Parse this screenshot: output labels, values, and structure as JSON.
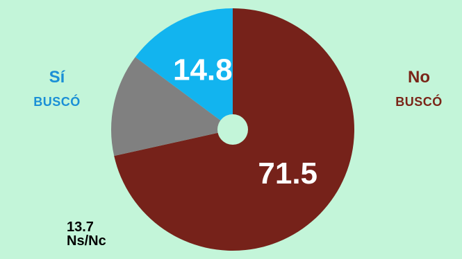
{
  "chart_data": {
    "type": "pie",
    "donut_hole": true,
    "start_angle_deg": 90,
    "direction": "clockwise",
    "slices": [
      {
        "name": "No BUSCÓ",
        "value": 71.5,
        "label": "71.5",
        "color": "#76221a"
      },
      {
        "name": "Ns/Nc",
        "value": 13.7,
        "label": "",
        "color": "#808080"
      },
      {
        "name": "Sí BUSCÓ",
        "value": 14.8,
        "label": "14.8",
        "color": "#12b4ef"
      }
    ],
    "labels": {
      "si_top": "Sí",
      "si_bottom": "BUSCÓ",
      "no_top": "No",
      "no_bottom": "BUSCÓ",
      "ns_value": "13.7",
      "ns_text": "Ns/Nc"
    },
    "colors": {
      "background": "#c3f5d9",
      "si_text": "#1a8fd6",
      "no_text": "#7a2518",
      "ns_text": "#000000"
    }
  }
}
